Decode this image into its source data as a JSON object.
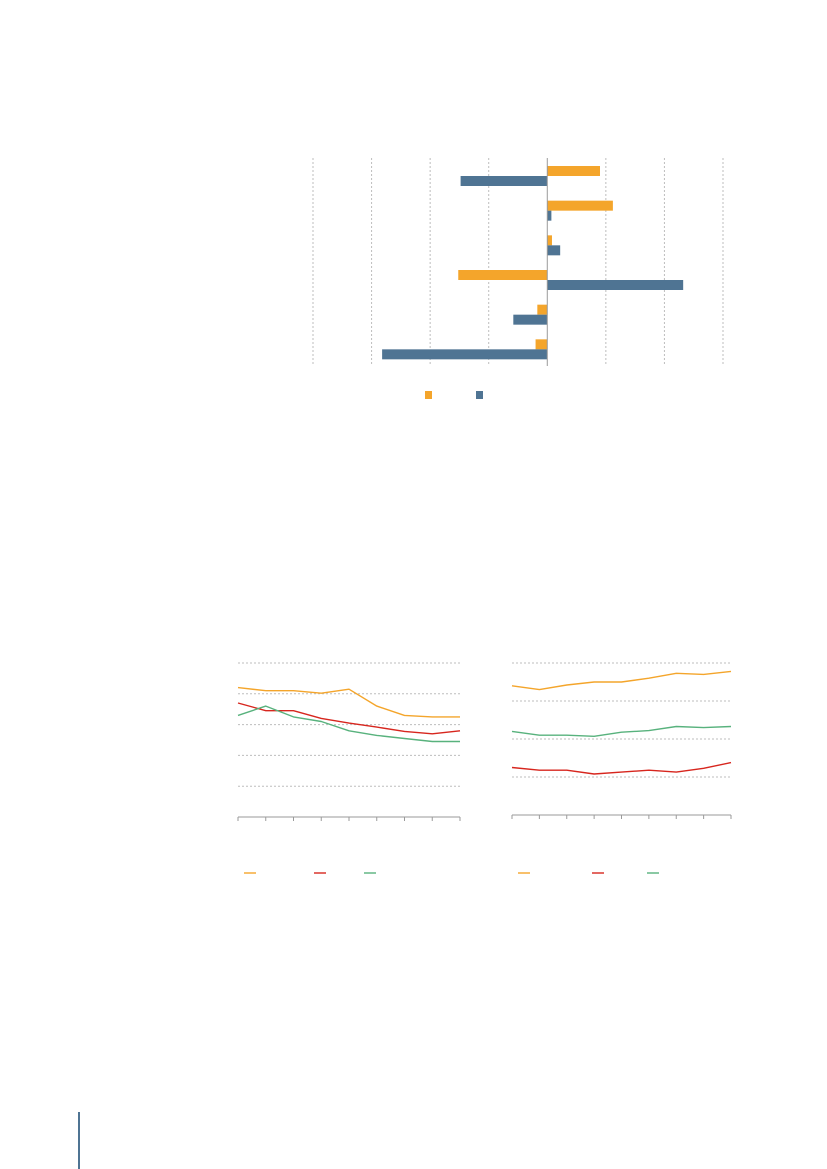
{
  "colors": {
    "orange": "#f4a52b",
    "blue": "#4f7493",
    "red": "#d7261e",
    "green": "#58b27d",
    "grid": "#bdbdbd",
    "axis": "#9a9a9a"
  },
  "chart_data": [
    {
      "type": "bar",
      "orientation": "horizontal",
      "categories": [
        "",
        "",
        "",
        "",
        "",
        ""
      ],
      "xlim": [
        -4,
        3
      ],
      "xticks": [
        -4,
        -3,
        -2,
        -1,
        0,
        1,
        2,
        3
      ],
      "grid": true,
      "legend": "bottom-center",
      "series": [
        {
          "color": "orange",
          "values": [
            0.9,
            1.12,
            0.08,
            -1.52,
            -0.17,
            -0.2
          ]
        },
        {
          "color": "blue",
          "values": [
            -1.48,
            0.07,
            0.22,
            2.32,
            -0.58,
            -2.82
          ]
        }
      ]
    },
    {
      "type": "line",
      "x": [
        1,
        2,
        3,
        4,
        5,
        6,
        7,
        8,
        9
      ],
      "ylim": [
        0,
        5
      ],
      "yticks": [
        0,
        1,
        2,
        3,
        4,
        5
      ],
      "grid": true,
      "legend": "bottom-left",
      "series": [
        {
          "color": "orange",
          "values": [
            4.2,
            4.1,
            4.1,
            4.02,
            4.15,
            3.6,
            3.3,
            3.25,
            3.25
          ]
        },
        {
          "color": "red",
          "values": [
            3.7,
            3.45,
            3.45,
            3.2,
            3.05,
            2.92,
            2.78,
            2.7,
            2.8
          ]
        },
        {
          "color": "green",
          "values": [
            3.3,
            3.6,
            3.25,
            3.1,
            2.8,
            2.65,
            2.55,
            2.45,
            2.45
          ]
        }
      ]
    },
    {
      "type": "line",
      "x": [
        1,
        2,
        3,
        4,
        5,
        6,
        7,
        8,
        9
      ],
      "ylim": [
        0,
        4
      ],
      "yticks": [
        0,
        1,
        2,
        3,
        4
      ],
      "grid": true,
      "legend": "bottom-left",
      "series": [
        {
          "color": "orange",
          "values": [
            3.4,
            3.3,
            3.42,
            3.5,
            3.5,
            3.6,
            3.73,
            3.7,
            3.78
          ]
        },
        {
          "color": "red",
          "values": [
            1.25,
            1.18,
            1.18,
            1.08,
            1.13,
            1.18,
            1.13,
            1.23,
            1.38
          ]
        },
        {
          "color": "green",
          "values": [
            2.2,
            2.1,
            2.1,
            2.07,
            2.18,
            2.22,
            2.33,
            2.3,
            2.33
          ]
        }
      ]
    }
  ]
}
